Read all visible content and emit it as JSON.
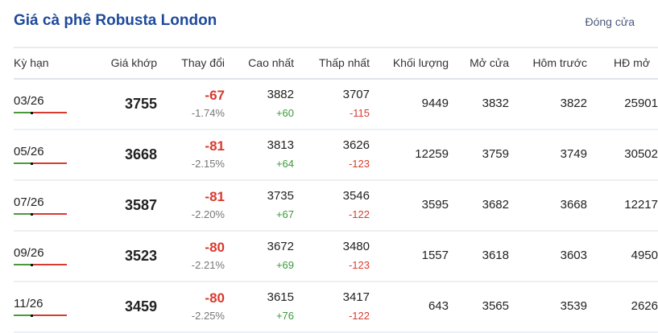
{
  "title": "Giá cà phê Robusta London",
  "status": "Đóng cửa",
  "colors": {
    "title": "#1f4a9c",
    "up": "#3a9a3a",
    "down": "#d93a2e"
  },
  "headers": [
    "Kỳ hạn",
    "Giá khớp",
    "Thay đổi",
    "Cao nhất",
    "Thấp nhất",
    "Khối lượng",
    "Mở cửa",
    "Hôm trước",
    "HĐ mở"
  ],
  "rows": [
    {
      "term": "03/26",
      "price": "3755",
      "change": "-67",
      "pct": "-1.74%",
      "high": "3882",
      "high_diff": "+60",
      "low": "3707",
      "low_diff": "-115",
      "volume": "9449",
      "open": "3832",
      "prev": "3822",
      "oi": "25901",
      "range_pos": 0.34
    },
    {
      "term": "05/26",
      "price": "3668",
      "change": "-81",
      "pct": "-2.15%",
      "high": "3813",
      "high_diff": "+64",
      "low": "3626",
      "low_diff": "-123",
      "volume": "12259",
      "open": "3759",
      "prev": "3749",
      "oi": "30502",
      "range_pos": 0.34
    },
    {
      "term": "07/26",
      "price": "3587",
      "change": "-81",
      "pct": "-2.20%",
      "high": "3735",
      "high_diff": "+67",
      "low": "3546",
      "low_diff": "-122",
      "volume": "3595",
      "open": "3682",
      "prev": "3668",
      "oi": "12217",
      "range_pos": 0.34
    },
    {
      "term": "09/26",
      "price": "3523",
      "change": "-80",
      "pct": "-2.21%",
      "high": "3672",
      "high_diff": "+69",
      "low": "3480",
      "low_diff": "-123",
      "volume": "1557",
      "open": "3618",
      "prev": "3603",
      "oi": "4950",
      "range_pos": 0.34
    },
    {
      "term": "11/26",
      "price": "3459",
      "change": "-80",
      "pct": "-2.25%",
      "high": "3615",
      "high_diff": "+76",
      "low": "3417",
      "low_diff": "-122",
      "volume": "643",
      "open": "3565",
      "prev": "3539",
      "oi": "2626",
      "range_pos": 0.34
    }
  ]
}
